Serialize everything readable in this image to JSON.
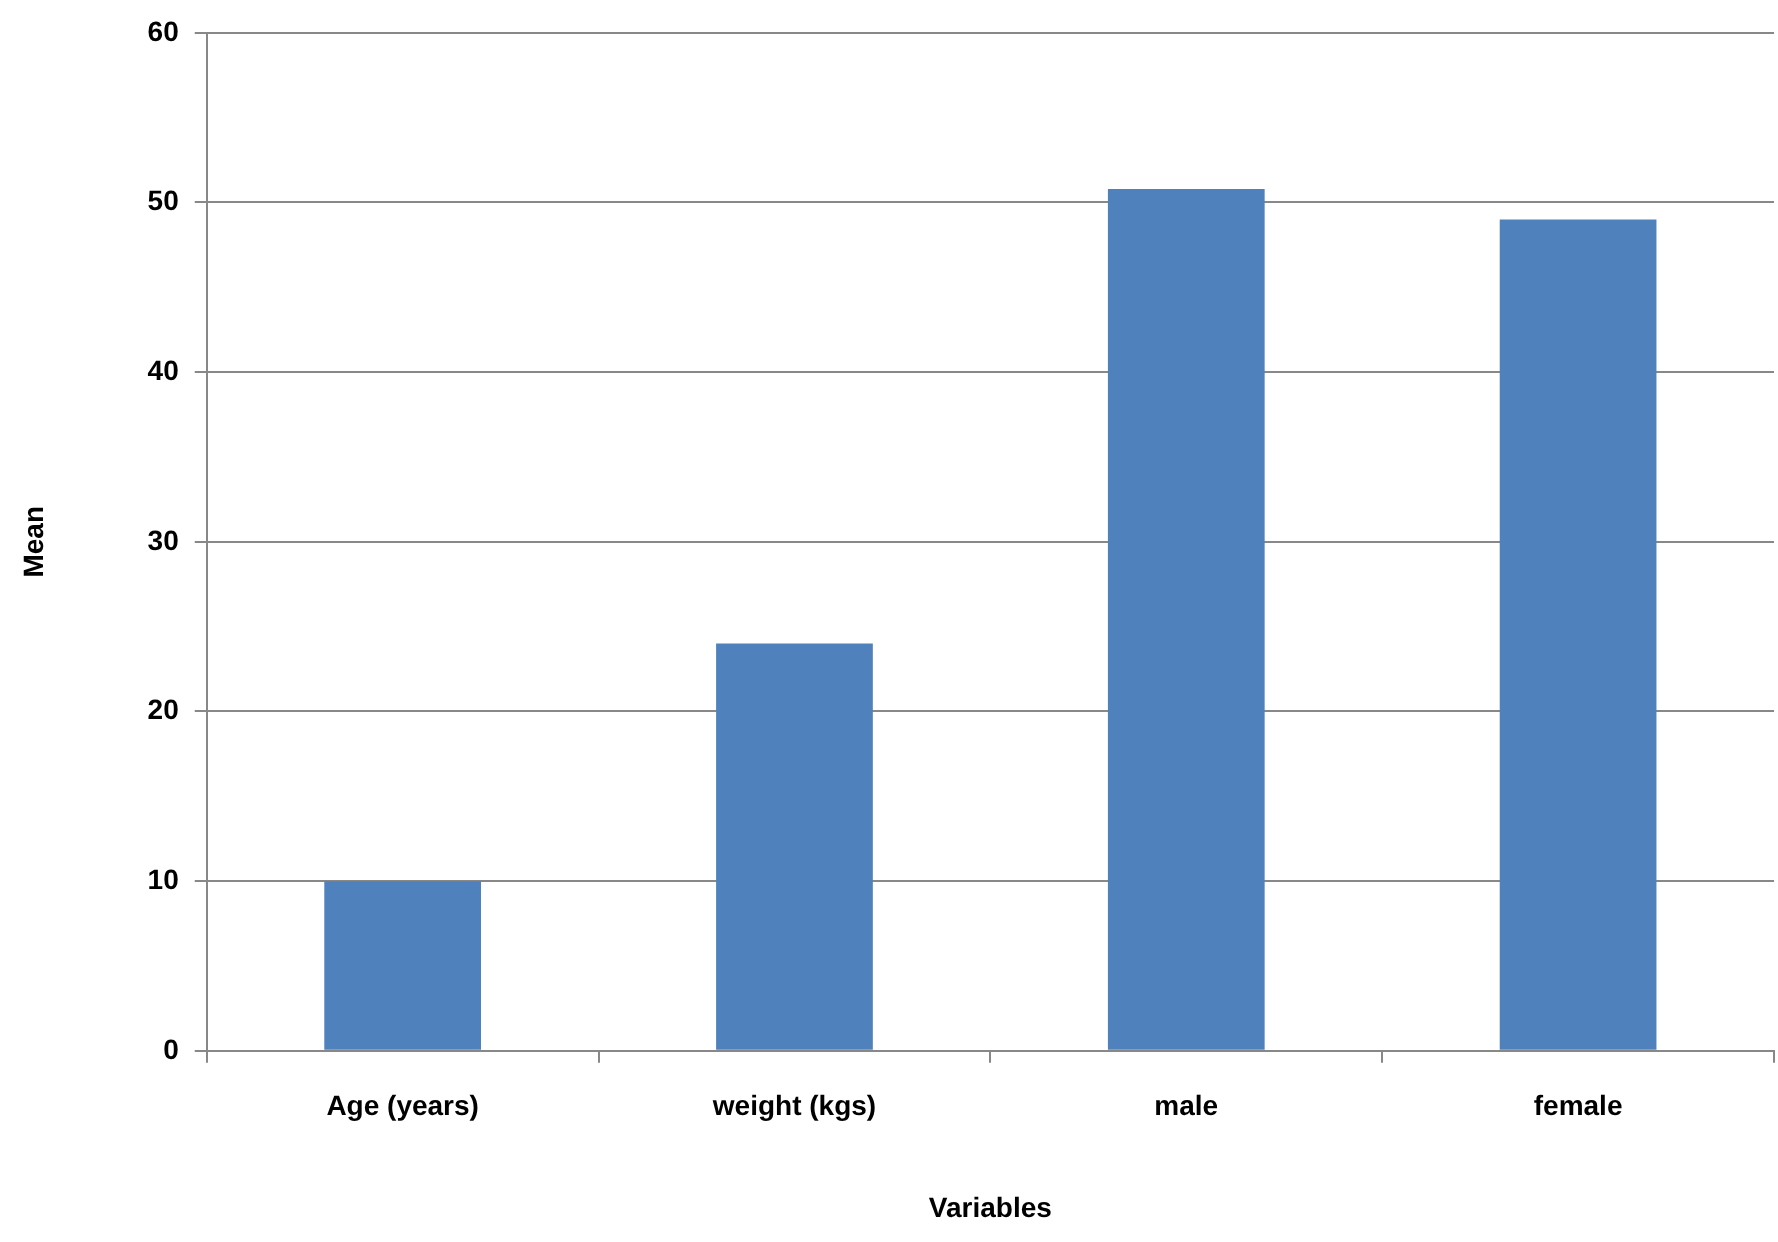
{
  "chart_data": {
    "type": "bar",
    "xlabel": "Variables",
    "ylabel": "Mean",
    "categories": [
      "Age (years)",
      "weight (kgs)",
      "male",
      "female"
    ],
    "values": [
      10,
      24,
      50.8,
      49
    ],
    "color": "#4f81bd",
    "ylim": [
      0,
      60
    ],
    "yticks": [
      0,
      10,
      20,
      30,
      40,
      50,
      60
    ],
    "grid": "y"
  }
}
